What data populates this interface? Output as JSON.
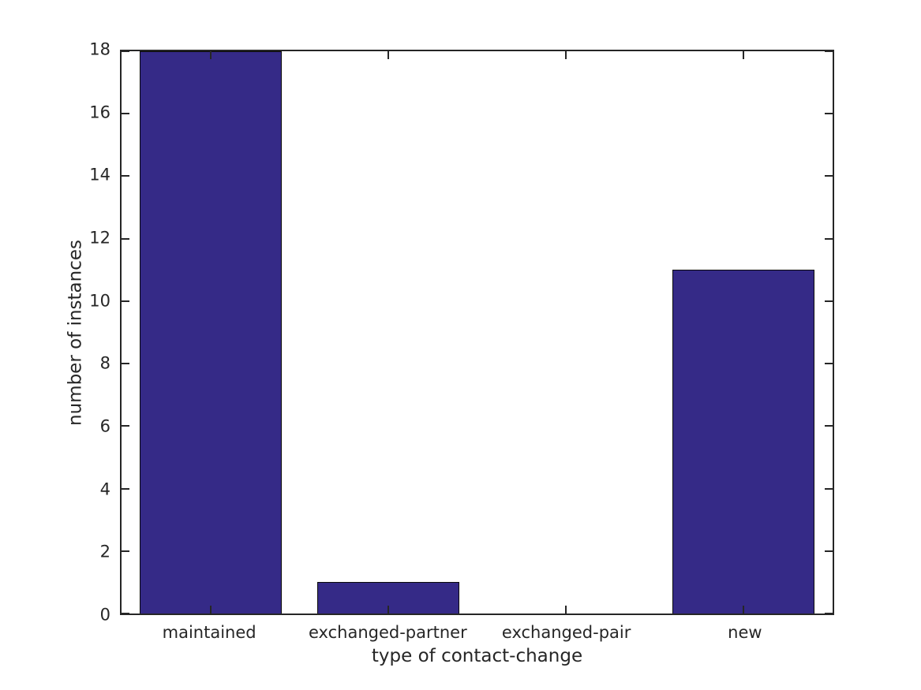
{
  "chart_data": {
    "type": "bar",
    "title": "",
    "xlabel": "type of contact-change",
    "ylabel": "number of instances",
    "categories": [
      "maintained",
      "exchanged-partner",
      "exchanged-pair",
      "new"
    ],
    "values": [
      18,
      1,
      0,
      11
    ],
    "ylim": [
      0,
      18
    ],
    "yticks": [
      0,
      2,
      4,
      6,
      8,
      10,
      12,
      14,
      16,
      18
    ],
    "bar_width_fraction": 0.8,
    "grid": false,
    "legend": null,
    "colors": {
      "bar_fill": "#352A87",
      "bar_edge": "#0a0a0a",
      "axis": "#262626",
      "text": "#262626",
      "background": "#ffffff"
    }
  }
}
